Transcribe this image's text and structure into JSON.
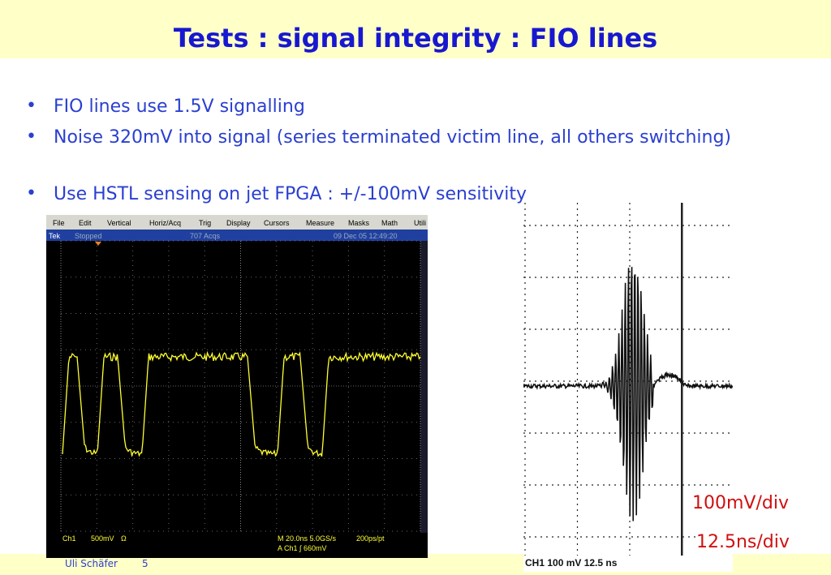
{
  "header": {
    "title": "Tests : signal integrity : FIO lines"
  },
  "bullets": [
    "FIO lines use 1.5V signalling",
    "Noise 320mV into signal (series terminated victim line, all others switching)",
    "Use HSTL sensing on jet FPGA : +/-100mV sensitivity"
  ],
  "scope_left": {
    "menu": [
      "File",
      "Edit",
      "Vertical",
      "Horiz/Acq",
      "Trig",
      "Display",
      "Cursors",
      "Measure",
      "Masks",
      "Math",
      "Utili"
    ],
    "status": [
      "Tek",
      "Stopped",
      "707 Acqs",
      "09 Dec 05 12:49:20"
    ],
    "info": [
      "Ch1",
      "500mV",
      "Ω",
      "M 20.0ns 5.0GS/s",
      "200ps/pt",
      "A  Ch1  ∫  660mV"
    ]
  },
  "scope_right": {
    "info": "CH1  100 mV   12.5 ns"
  },
  "labels": [
    "100mV/div",
    "12.5ns/div"
  ],
  "footer": {
    "author": "Uli Schäfer",
    "page": "5"
  }
}
